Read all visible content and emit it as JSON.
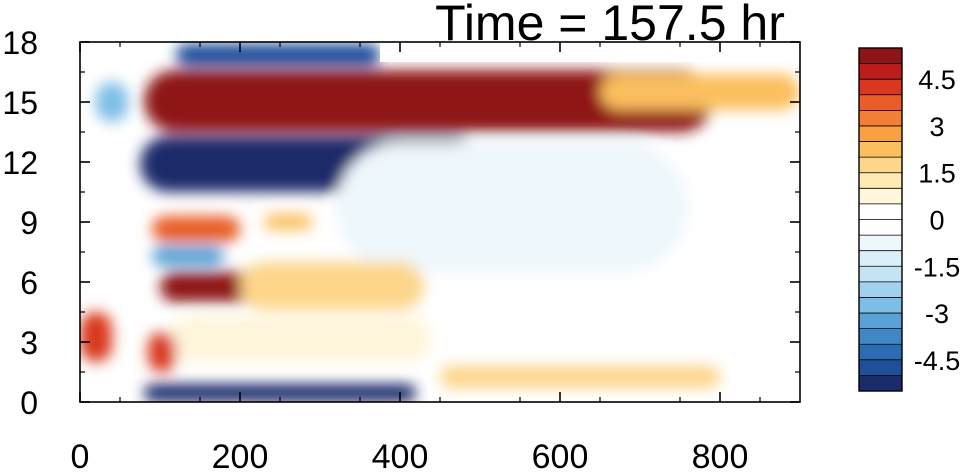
{
  "chart_data": {
    "type": "heatmap",
    "title": "Time = 157.5 hr",
    "xlabel": "",
    "ylabel": "",
    "xlim": [
      0,
      900
    ],
    "ylim": [
      0,
      18
    ],
    "x_ticks": [
      0,
      200,
      400,
      600,
      800
    ],
    "x_tick_labels": [
      "0",
      "200",
      "400",
      "600",
      "800"
    ],
    "y_ticks": [
      0,
      3,
      6,
      9,
      12,
      15,
      18
    ],
    "y_tick_labels": [
      "0",
      "3",
      "6",
      "9",
      "12",
      "15",
      "18"
    ],
    "grid": false,
    "colorbar": {
      "placement": "right",
      "levels": [
        -5.5,
        -5,
        -4.5,
        -4,
        -3.5,
        -3,
        -2.5,
        -2,
        -1.5,
        -1,
        -0.5,
        0,
        0.5,
        1,
        1.5,
        2,
        2.5,
        3,
        3.5,
        4,
        4.5,
        5,
        5.5
      ],
      "colors": [
        "#1b2c6b",
        "#1f4e9a",
        "#2b6cb2",
        "#3f88c6",
        "#5aa2d6",
        "#7dbde6",
        "#a0d1ef",
        "#c4e3f5",
        "#dceff9",
        "#eef7fc",
        "#ffffff",
        "#ffffff",
        "#fff6dc",
        "#ffe9b5",
        "#fdd68a",
        "#fbbf5e",
        "#f8a043",
        "#f27f33",
        "#e85d28",
        "#d9371f",
        "#bd1c1c",
        "#8e1416"
      ],
      "tick_values": [
        4.5,
        3,
        1.5,
        0,
        -1.5,
        -3,
        -4.5
      ],
      "tick_labels": [
        "4.5",
        "3",
        "1.5",
        "0",
        "-1.5",
        "-3",
        "-4.5"
      ]
    },
    "features": [
      {
        "name": "upper positive band",
        "type": "blob",
        "x": [
          80,
          790
        ],
        "y": [
          13.5,
          16.6
        ],
        "value": 5.5
      },
      {
        "name": "upper positive band tail",
        "type": "blob",
        "x": [
          650,
          900
        ],
        "y": [
          14.6,
          16.4
        ],
        "value": 2
      },
      {
        "name": "negative band",
        "type": "blob",
        "x": [
          75,
          500
        ],
        "y": [
          10.5,
          13.3
        ],
        "value": -5.5
      },
      {
        "name": "negative band edge",
        "type": "blob",
        "x": [
          400,
          560
        ],
        "y": [
          10.7,
          13.0
        ],
        "value": -2
      },
      {
        "name": "top negative strip",
        "type": "blob",
        "x": [
          120,
          375
        ],
        "y": [
          16.8,
          17.9
        ],
        "value": -5
      },
      {
        "name": "broad weak negative",
        "type": "blob",
        "x": [
          320,
          760
        ],
        "y": [
          6.5,
          13.0
        ],
        "value": -0.8
      },
      {
        "name": "positive band near 8.5",
        "type": "blob",
        "x": [
          90,
          200
        ],
        "y": [
          8.0,
          9.3
        ],
        "value": 3.5
      },
      {
        "name": "small positive near 9",
        "type": "blob",
        "x": [
          230,
          290
        ],
        "y": [
          8.6,
          9.4
        ],
        "value": 2
      },
      {
        "name": "negative near 7.3",
        "type": "blob",
        "x": [
          90,
          180
        ],
        "y": [
          6.8,
          7.8
        ],
        "value": -3.5
      },
      {
        "name": "positive band near 5.7",
        "type": "blob",
        "x": [
          100,
          230
        ],
        "y": [
          5.0,
          6.5
        ],
        "value": 5
      },
      {
        "name": "weak positive band near 6",
        "type": "blob",
        "x": [
          200,
          430
        ],
        "y": [
          4.6,
          7.0
        ],
        "value": 1.5
      },
      {
        "name": "weak positive near 3",
        "type": "blob",
        "x": [
          110,
          440
        ],
        "y": [
          2.0,
          4.3
        ],
        "value": 0.8
      },
      {
        "name": "positive near 2.5",
        "type": "blob",
        "x": [
          85,
          120
        ],
        "y": [
          1.5,
          3.5
        ],
        "value": 4
      },
      {
        "name": "negative bottom strip",
        "type": "blob",
        "x": [
          80,
          420
        ],
        "y": [
          0.0,
          0.9
        ],
        "value": -5.5
      },
      {
        "name": "positive bottom strip",
        "type": "blob",
        "x": [
          450,
          800
        ],
        "y": [
          0.7,
          1.8
        ],
        "value": 1.5
      },
      {
        "name": "left edge positive",
        "type": "blob",
        "x": [
          0,
          40
        ],
        "y": [
          2.0,
          4.5
        ],
        "value": 4
      },
      {
        "name": "left edge negative",
        "type": "blob",
        "x": [
          20,
          60
        ],
        "y": [
          14.0,
          16.0
        ],
        "value": -3
      }
    ]
  }
}
